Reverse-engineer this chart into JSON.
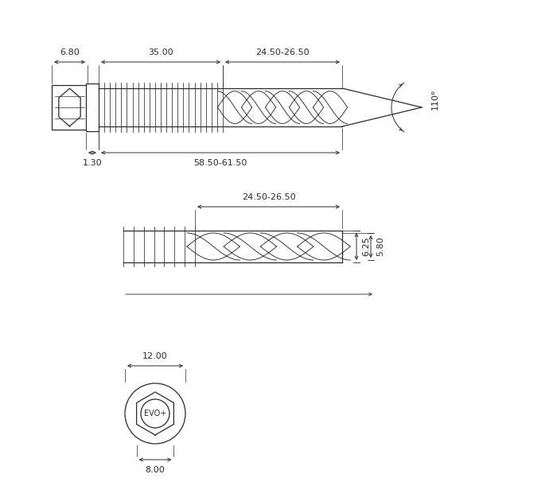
{
  "bg_color": "#ffffff",
  "line_color": "#2a2a2a",
  "font_size": 8.0,
  "fig_w": 7.0,
  "fig_h": 6.3,
  "dpi": 100
}
